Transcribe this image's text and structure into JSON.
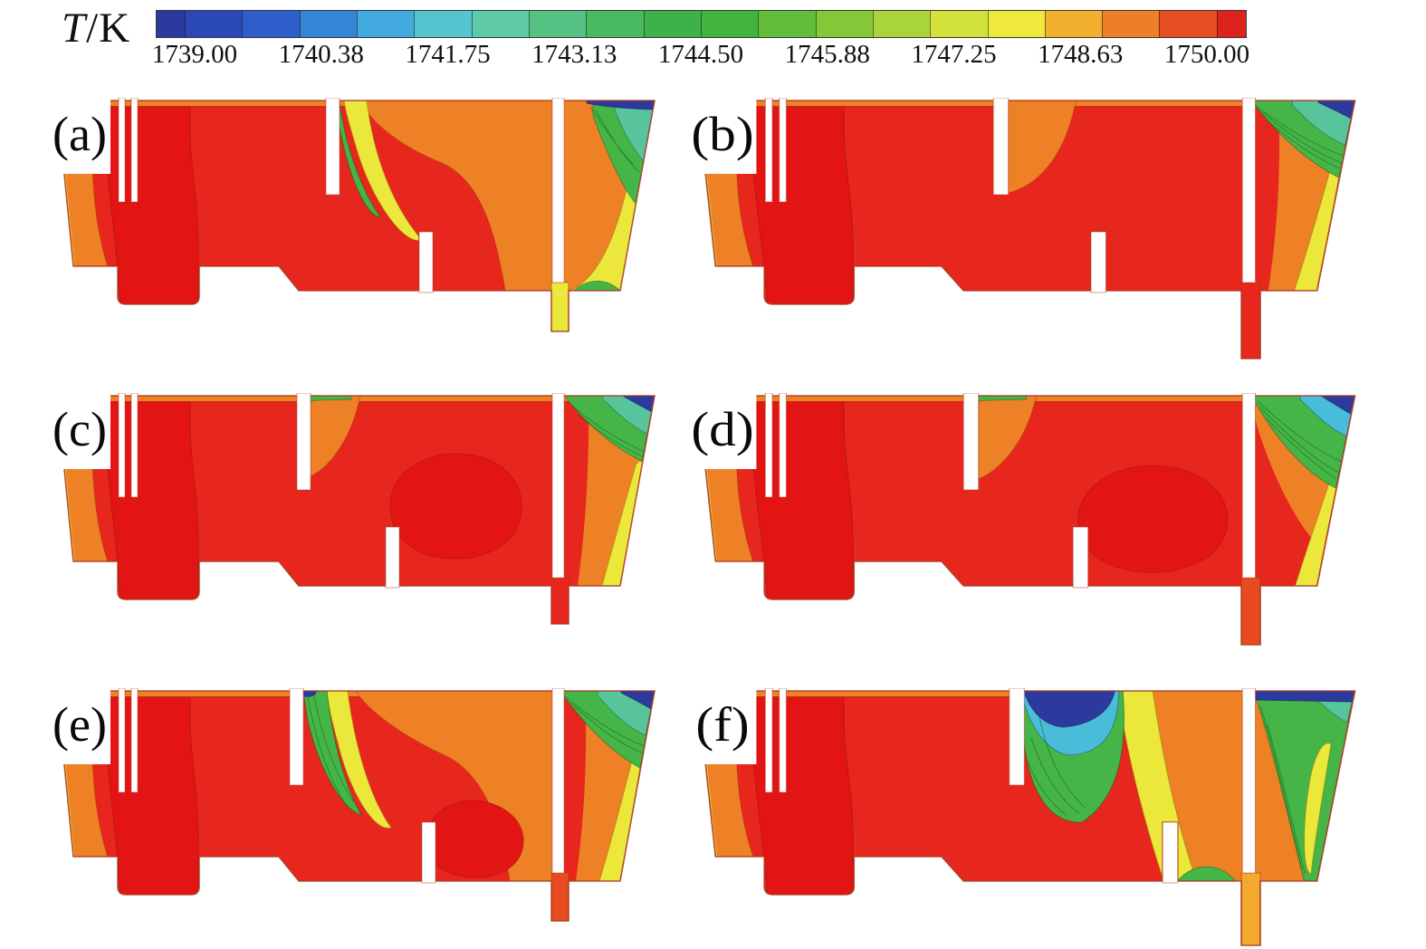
{
  "figure": {
    "colorbar": {
      "title_symbol": "T",
      "title_unit": "/K",
      "ticks": [
        "1739.00",
        "1740.38",
        "1741.75",
        "1743.13",
        "1744.50",
        "1745.88",
        "1747.25",
        "1748.63",
        "1750.00"
      ],
      "cell_colors": [
        "#2d3a9d",
        "#2b49b6",
        "#2e5ec9",
        "#3585d6",
        "#42aadf",
        "#54c4cf",
        "#5ecaa8",
        "#55c183",
        "#4aba61",
        "#3db248",
        "#43b43c",
        "#62bd3a",
        "#84c83a",
        "#aad43b",
        "#d3e13c",
        "#efe93c",
        "#f2b030",
        "#ee7f26",
        "#e74e22",
        "#de231d"
      ]
    },
    "palette": {
      "red": "#e7261d",
      "deepRed": "#e21414",
      "orangeRed": "#e84b20",
      "orange": "#ee8125",
      "lightOrange": "#f2a92e",
      "yellow": "#ece73b",
      "yellowGreen": "#b5d739",
      "green": "#45b547",
      "darkGreen": "#36a83c",
      "teal": "#58c49c",
      "cyan": "#49bcd9",
      "blue": "#2d55c4",
      "darkBlue": "#2c3a9e",
      "outline": "#a93a22"
    },
    "panels": [
      {
        "id": "a",
        "label": "(a)",
        "outlet": "yellow"
      },
      {
        "id": "b",
        "label": "(b)",
        "outlet": "red"
      },
      {
        "id": "c",
        "label": "(c)",
        "outlet": "red"
      },
      {
        "id": "d",
        "label": "(d)",
        "outlet": "orangeRed"
      },
      {
        "id": "e",
        "label": "(e)",
        "outlet": "orangeRed"
      },
      {
        "id": "f",
        "label": "(f)",
        "outlet": "lightOrange"
      }
    ]
  },
  "chart_data": {
    "type": "heatmap",
    "subtype": "CFD temperature contour plots, 6 furnace cross-section variants",
    "title": "T/K",
    "legend_position": "top",
    "colorbar": {
      "label": "T/K",
      "min": 1739.0,
      "max": 1750.0,
      "ticks": [
        1739.0,
        1740.38,
        1741.75,
        1743.13,
        1744.5,
        1745.88,
        1747.25,
        1748.63,
        1750.0
      ],
      "tick_interval": 1.375,
      "n_color_bands": 20,
      "scale": "discrete rainbow, dark blue (1739 K) to red (1750 K)"
    },
    "panels": [
      {
        "label": "(a)",
        "description": "Melt mostly 1749-1750 K (red); yellow-green plume right of top baffle; top-right corner cooled to ~1739-1743 K (blue/green); yellow band (~1747 K) along sloped right wall; outlet channel ~1747 K (yellow)."
      },
      {
        "label": "(b)",
        "description": "Melt almost entirely ~1750 K (red); cool blue/green stratified corner at top right; yellow band along right wall; outlet channel hot (red)."
      },
      {
        "label": "(c)",
        "description": "Mostly ~1750 K; small stratified cool corner top right with yellow band along right wall; slightly hotter red core mid-right; outlet red."
      },
      {
        "label": "(d)",
        "description": "Mostly ~1750 K; larger blue/cyan/green cool wedge at top right; yellow band along lower right wall; outlet red-orange."
      },
      {
        "label": "(e)",
        "description": "Mostly ~1750 K; narrow rainbow fan of cool fluid right of the baffle; cool top-right corner with yellow wall band; outlet orange-red."
      },
      {
        "label": "(f)",
        "description": "Large cold region (down to ~1739 K, blue) at top of mid chamber right of baffle; broad yellow plumes toward outlet; right chamber mostly green/yellow; outlet ~1747 K."
      }
    ]
  }
}
